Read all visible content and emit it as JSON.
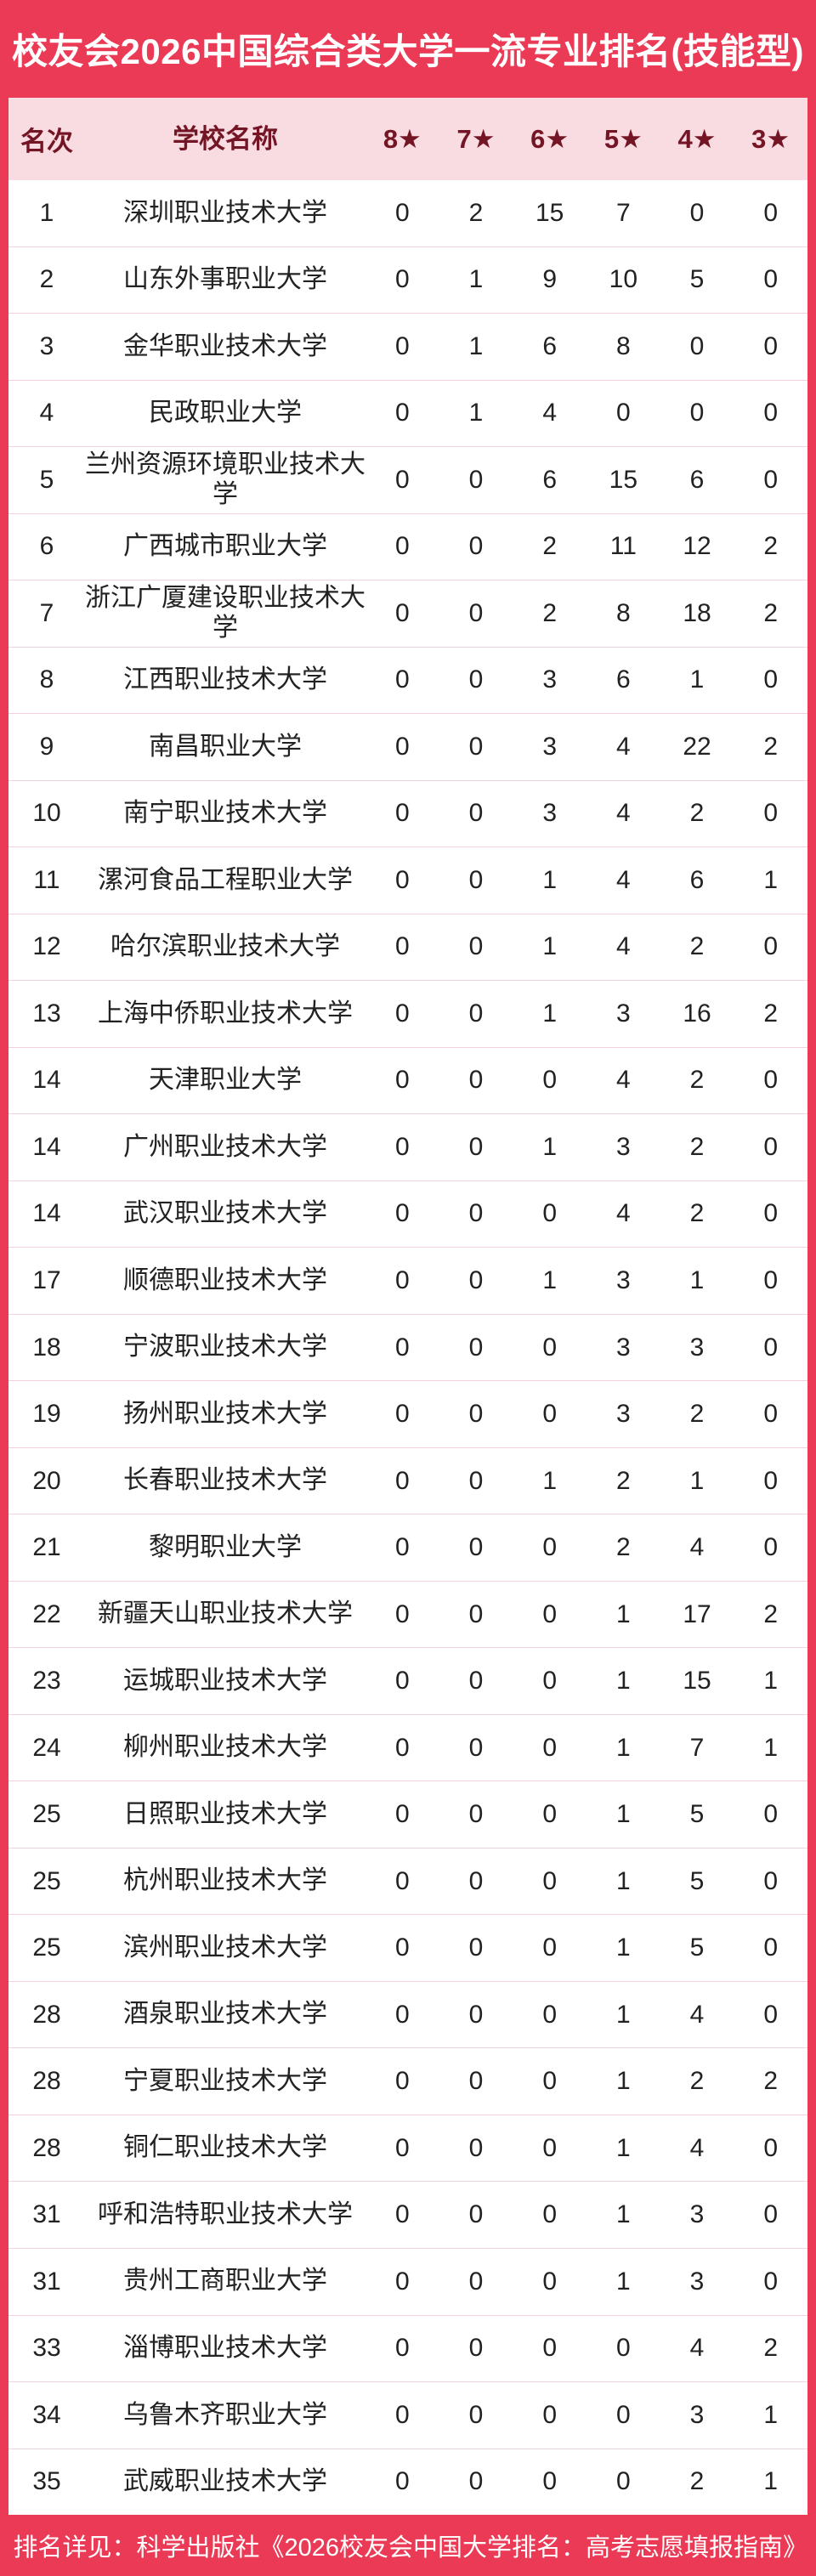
{
  "title": "校友会2026中国综合类大学一流专业排名(技能型)",
  "footer": "排名详见：科学出版社《2026校友会中国大学排名：高考志愿填报指南》",
  "colors": {
    "band_red": "#EA3A55",
    "header_pink": "#F8DCE1",
    "header_text_maroon": "#741526",
    "body_text": "#222222",
    "divider_pink": "#F5D2D8",
    "title_text": "#FFFFFF"
  },
  "chart_data": {
    "type": "table",
    "title": "校友会2026中国综合类大学一流专业排名(技能型)",
    "columns": [
      "名次",
      "学校名称",
      "8★",
      "7★",
      "6★",
      "5★",
      "4★",
      "3★"
    ],
    "rows": [
      [
        1,
        "深圳职业技术大学",
        0,
        2,
        15,
        7,
        0,
        0
      ],
      [
        2,
        "山东外事职业大学",
        0,
        1,
        9,
        10,
        5,
        0
      ],
      [
        3,
        "金华职业技术大学",
        0,
        1,
        6,
        8,
        0,
        0
      ],
      [
        4,
        "民政职业大学",
        0,
        1,
        4,
        0,
        0,
        0
      ],
      [
        5,
        "兰州资源环境职业技术大学",
        0,
        0,
        6,
        15,
        6,
        0
      ],
      [
        6,
        "广西城市职业大学",
        0,
        0,
        2,
        11,
        12,
        2
      ],
      [
        7,
        "浙江广厦建设职业技术大学",
        0,
        0,
        2,
        8,
        18,
        2
      ],
      [
        8,
        "江西职业技术大学",
        0,
        0,
        3,
        6,
        1,
        0
      ],
      [
        9,
        "南昌职业大学",
        0,
        0,
        3,
        4,
        22,
        2
      ],
      [
        10,
        "南宁职业技术大学",
        0,
        0,
        3,
        4,
        2,
        0
      ],
      [
        11,
        "漯河食品工程职业大学",
        0,
        0,
        1,
        4,
        6,
        1
      ],
      [
        12,
        "哈尔滨职业技术大学",
        0,
        0,
        1,
        4,
        2,
        0
      ],
      [
        13,
        "上海中侨职业技术大学",
        0,
        0,
        1,
        3,
        16,
        2
      ],
      [
        14,
        "天津职业大学",
        0,
        0,
        0,
        4,
        2,
        0
      ],
      [
        14,
        "广州职业技术大学",
        0,
        0,
        1,
        3,
        2,
        0
      ],
      [
        14,
        "武汉职业技术大学",
        0,
        0,
        0,
        4,
        2,
        0
      ],
      [
        17,
        "顺德职业技术大学",
        0,
        0,
        1,
        3,
        1,
        0
      ],
      [
        18,
        "宁波职业技术大学",
        0,
        0,
        0,
        3,
        3,
        0
      ],
      [
        19,
        "扬州职业技术大学",
        0,
        0,
        0,
        3,
        2,
        0
      ],
      [
        20,
        "长春职业技术大学",
        0,
        0,
        1,
        2,
        1,
        0
      ],
      [
        21,
        "黎明职业大学",
        0,
        0,
        0,
        2,
        4,
        0
      ],
      [
        22,
        "新疆天山职业技术大学",
        0,
        0,
        0,
        1,
        17,
        2
      ],
      [
        23,
        "运城职业技术大学",
        0,
        0,
        0,
        1,
        15,
        1
      ],
      [
        24,
        "柳州职业技术大学",
        0,
        0,
        0,
        1,
        7,
        1
      ],
      [
        25,
        "日照职业技术大学",
        0,
        0,
        0,
        1,
        5,
        0
      ],
      [
        25,
        "杭州职业技术大学",
        0,
        0,
        0,
        1,
        5,
        0
      ],
      [
        25,
        "滨州职业技术大学",
        0,
        0,
        0,
        1,
        5,
        0
      ],
      [
        28,
        "酒泉职业技术大学",
        0,
        0,
        0,
        1,
        4,
        0
      ],
      [
        28,
        "宁夏职业技术大学",
        0,
        0,
        0,
        1,
        2,
        2
      ],
      [
        28,
        "铜仁职业技术大学",
        0,
        0,
        0,
        1,
        4,
        0
      ],
      [
        31,
        "呼和浩特职业技术大学",
        0,
        0,
        0,
        1,
        3,
        0
      ],
      [
        31,
        "贵州工商职业大学",
        0,
        0,
        0,
        1,
        3,
        0
      ],
      [
        33,
        "淄博职业技术大学",
        0,
        0,
        0,
        0,
        4,
        2
      ],
      [
        34,
        "乌鲁木齐职业大学",
        0,
        0,
        0,
        0,
        3,
        1
      ],
      [
        35,
        "武威职业技术大学",
        0,
        0,
        0,
        0,
        2,
        1
      ]
    ]
  }
}
